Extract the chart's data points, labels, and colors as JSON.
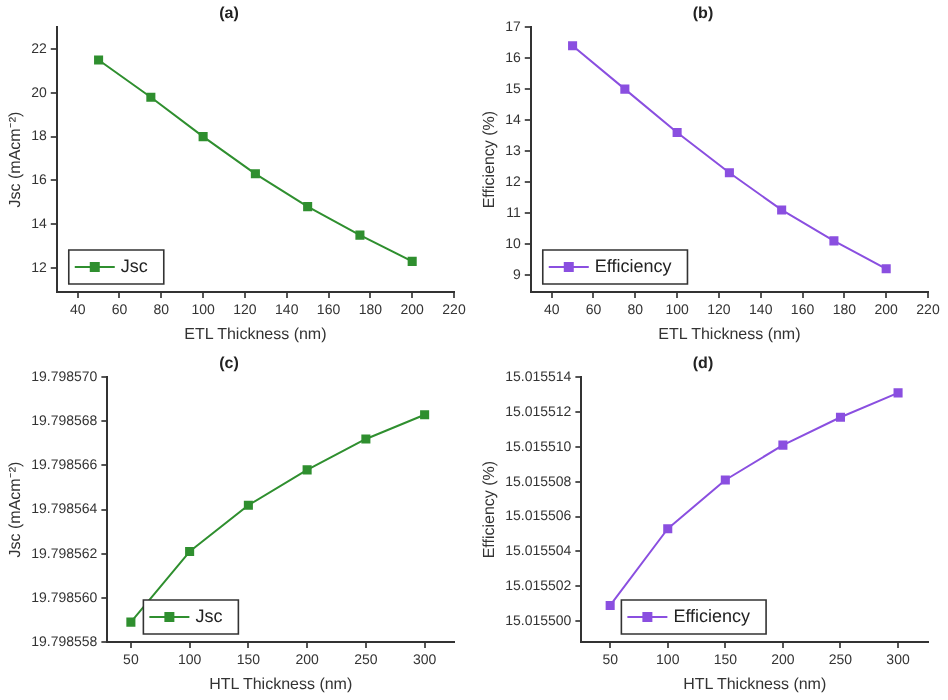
{
  "chart_data": [
    {
      "type": "line",
      "title": "(a)",
      "xlabel": "ETL Thickness (nm)",
      "ylabel": "Jsc (mAcm⁻²)",
      "x": [
        50,
        75,
        100,
        125,
        150,
        175,
        200
      ],
      "series": [
        {
          "name": "Jsc",
          "color": "#2f8f2f",
          "values": [
            21.5,
            19.8,
            18.0,
            16.3,
            14.8,
            13.5,
            12.3
          ]
        }
      ],
      "xlim": [
        30,
        220
      ],
      "xticks": [
        40,
        60,
        80,
        100,
        120,
        140,
        160,
        180,
        200,
        220
      ],
      "ylim": [
        10.9,
        23
      ],
      "yticks": [
        12,
        14,
        16,
        18,
        20,
        22
      ],
      "grid": false,
      "legend": "bottom left",
      "marker": "square",
      "line_style": "solid"
    },
    {
      "type": "line",
      "title": "(b)",
      "xlabel": "ETL Thickness (nm)",
      "ylabel": "Efficiency (%)",
      "x": [
        50,
        75,
        100,
        125,
        150,
        175,
        200
      ],
      "series": [
        {
          "name": "Efficiency",
          "color": "#8a4fe0",
          "values": [
            16.4,
            15.0,
            13.6,
            12.3,
            11.1,
            10.1,
            9.2
          ]
        }
      ],
      "xlim": [
        30,
        220
      ],
      "xticks": [
        40,
        60,
        80,
        100,
        120,
        140,
        160,
        180,
        200,
        220
      ],
      "ylim": [
        8.45,
        17
      ],
      "yticks": [
        9,
        10,
        11,
        12,
        13,
        14,
        15,
        16,
        17
      ],
      "grid": false,
      "legend": "bottom left",
      "marker": "square",
      "line_style": "solid"
    },
    {
      "type": "line",
      "title": "(c)",
      "xlabel": "HTL Thickness (nm)",
      "ylabel": "Jsc (mAcm⁻²)",
      "x": [
        50,
        100,
        150,
        200,
        250,
        300
      ],
      "series": [
        {
          "name": "Jsc",
          "color": "#2f8f2f",
          "values": [
            19.7985589,
            19.7985621,
            19.7985642,
            19.7985658,
            19.7985672,
            19.7985683
          ]
        }
      ],
      "xlim": [
        30,
        325
      ],
      "xticks": [
        50,
        100,
        150,
        200,
        250,
        300
      ],
      "ylim": [
        19.798558,
        19.79857
      ],
      "yticks": [
        19.798558,
        {
          "value": 19.79856,
          "label": "19.798560"
        },
        19.798562,
        19.798564,
        19.798566,
        19.798568,
        {
          "value": 19.79857,
          "label": "19.798570"
        }
      ],
      "grid": false,
      "legend": "bottom left",
      "marker": "square",
      "line_style": "solid"
    },
    {
      "type": "line",
      "title": "(d)",
      "xlabel": "HTL Thickness (nm)",
      "ylabel": "Efficiency (%)",
      "x": [
        50,
        100,
        150,
        200,
        250,
        300
      ],
      "series": [
        {
          "name": "Efficiency",
          "color": "#8a4fe0",
          "values": [
            15.0155009,
            15.0155053,
            15.0155081,
            15.0155101,
            15.0155117,
            15.0155131
          ]
        }
      ],
      "xlim": [
        25,
        326
      ],
      "xticks": [
        50,
        100,
        150,
        200,
        250,
        300
      ],
      "ylim": [
        15.0154988,
        15.015514
      ],
      "yticks": [
        {
          "value": 15.0155,
          "label": "15.015500"
        },
        15.015502,
        15.015504,
        15.015506,
        15.015508,
        {
          "value": 15.01551,
          "label": "15.015510"
        },
        15.015512,
        15.015514
      ],
      "grid": false,
      "legend": "bottom left",
      "marker": "square",
      "line_style": "solid"
    }
  ]
}
